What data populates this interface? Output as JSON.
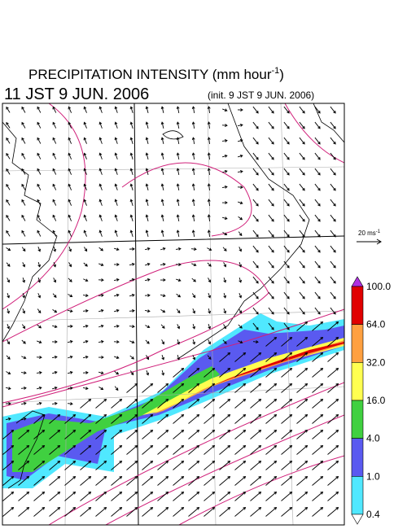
{
  "header": {
    "title": "PRECIPITATION INTENSITY (mm hour",
    "title_exponent": "-1",
    "title_close": ")",
    "valid_time": "11 JST 9 JUN. 2006",
    "init_time": "(init. 9 JST 9 JUN. 2006)"
  },
  "wind_scale": {
    "label": "20 ms",
    "exponent": "-1"
  },
  "colorbar": {
    "labels": [
      "100.0",
      "64.0",
      "32.0",
      "16.0",
      "4.0",
      "1.0",
      "0.4"
    ],
    "colors": [
      "#e00000",
      "#ffa040",
      "#ffff50",
      "#40d040",
      "#5a5af0",
      "#50e8ff"
    ],
    "over_color": "#b030e0",
    "under_color": "#ffffff"
  }
}
